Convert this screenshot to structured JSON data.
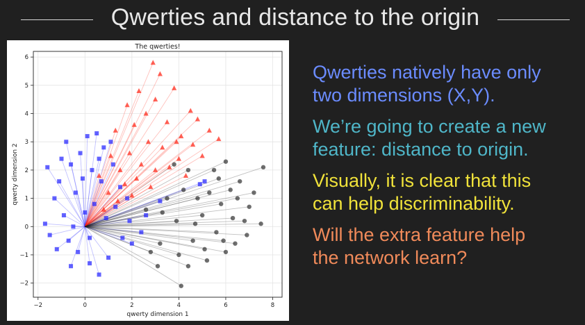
{
  "slide": {
    "title": "Qwerties and distance to the origin",
    "bullets": [
      {
        "lines": [
          "Qwerties natively have only",
          "two dimensions (X,Y)."
        ],
        "color": "#6b8cff"
      },
      {
        "lines": [
          "We’re going to create a new",
          "feature: distance to origin."
        ],
        "color": "#4fb6c8"
      },
      {
        "lines": [
          "Visually, it is clear that this",
          "can help discriminability."
        ],
        "color": "#f0e23a"
      },
      {
        "lines": [
          "Will the extra feature help",
          "the network learn?"
        ],
        "color": "#f08a5a"
      }
    ]
  },
  "chart_data": {
    "type": "scatter",
    "title": "The qwerties!",
    "xlabel": "qwerty dimension 1",
    "ylabel": "qwerty dimension 2",
    "xlim": [
      -2.2,
      8.4
    ],
    "ylim": [
      -2.5,
      6.2
    ],
    "xticks": [
      -2,
      0,
      2,
      4,
      6,
      8
    ],
    "yticks": [
      -2,
      -1,
      0,
      1,
      2,
      3,
      4,
      5,
      6
    ],
    "grid": true,
    "origin": [
      0,
      0
    ],
    "lines_to_origin": true,
    "series": [
      {
        "marker": "square",
        "color": "#1f1fff",
        "points": [
          [
            -1.6,
            2.1
          ],
          [
            -1.3,
            1.0
          ],
          [
            -1.7,
            0.1
          ],
          [
            -1.5,
            -0.3
          ],
          [
            -1.1,
            1.6
          ],
          [
            -0.8,
            3.0
          ],
          [
            -0.6,
            2.2
          ],
          [
            -0.9,
            0.4
          ],
          [
            -0.7,
            -0.5
          ],
          [
            -0.4,
            1.2
          ],
          [
            -0.2,
            2.6
          ],
          [
            0.1,
            3.2
          ],
          [
            0.3,
            2.0
          ],
          [
            0.5,
            3.3
          ],
          [
            0.8,
            2.8
          ],
          [
            1.1,
            3.0
          ],
          [
            -0.3,
            -0.9
          ],
          [
            0.2,
            -1.3
          ],
          [
            0.6,
            -1.7
          ],
          [
            1.0,
            -1.1
          ],
          [
            0.4,
            0.8
          ],
          [
            0.7,
            1.6
          ],
          [
            1.2,
            2.2
          ],
          [
            1.5,
            1.4
          ],
          [
            -1.2,
            -0.8
          ],
          [
            -0.5,
            0.0
          ],
          [
            0.9,
            0.3
          ],
          [
            1.6,
            -0.4
          ],
          [
            2.0,
            -0.6
          ],
          [
            2.4,
            -0.2
          ],
          [
            -0.1,
            1.7
          ],
          [
            0.0,
            0.5
          ],
          [
            -1.0,
            2.4
          ],
          [
            0.6,
            2.4
          ],
          [
            1.3,
            0.7
          ],
          [
            0.2,
            -0.4
          ],
          [
            -0.6,
            -1.4
          ],
          [
            1.8,
            1.0
          ],
          [
            1.9,
            0.2
          ],
          [
            2.6,
            0.4
          ],
          [
            3.2,
            0.9
          ],
          [
            4.9,
            1.5
          ],
          [
            5.1,
            1.6
          ]
        ]
      },
      {
        "marker": "triangle",
        "color": "#ff2010",
        "points": [
          [
            2.9,
            5.8
          ],
          [
            3.2,
            5.4
          ],
          [
            2.3,
            4.8
          ],
          [
            3.8,
            4.9
          ],
          [
            4.5,
            4.1
          ],
          [
            1.8,
            4.3
          ],
          [
            3.0,
            4.5
          ],
          [
            4.8,
            3.8
          ],
          [
            5.3,
            3.4
          ],
          [
            5.7,
            3.1
          ],
          [
            2.1,
            3.6
          ],
          [
            3.5,
            3.7
          ],
          [
            4.1,
            3.2
          ],
          [
            1.3,
            3.4
          ],
          [
            2.7,
            3.0
          ],
          [
            1.9,
            2.6
          ],
          [
            3.3,
            2.8
          ],
          [
            4.0,
            2.4
          ],
          [
            4.6,
            2.9
          ],
          [
            1.5,
            2.0
          ],
          [
            2.4,
            2.2
          ],
          [
            3.0,
            2.0
          ],
          [
            1.0,
            1.2
          ],
          [
            1.7,
            1.5
          ],
          [
            2.2,
            1.7
          ],
          [
            3.6,
            2.1
          ],
          [
            4.3,
            1.8
          ],
          [
            0.8,
            0.6
          ],
          [
            1.4,
            0.9
          ],
          [
            2.0,
            1.1
          ],
          [
            2.8,
            1.4
          ],
          [
            0.6,
            1.8
          ],
          [
            1.1,
            2.5
          ],
          [
            3.9,
            3.0
          ],
          [
            2.6,
            4.0
          ],
          [
            5.0,
            2.5
          ]
        ]
      },
      {
        "marker": "circle",
        "color": "#222222",
        "points": [
          [
            7.6,
            2.1
          ],
          [
            7.5,
            0.1
          ],
          [
            6.8,
            0.2
          ],
          [
            6.9,
            -0.3
          ],
          [
            6.0,
            -0.9
          ],
          [
            6.4,
            -0.6
          ],
          [
            5.2,
            -1.2
          ],
          [
            4.4,
            -1.4
          ],
          [
            3.1,
            -1.4
          ],
          [
            4.1,
            -2.1
          ],
          [
            5.5,
            2.0
          ],
          [
            6.2,
            1.3
          ],
          [
            5.8,
            0.8
          ],
          [
            6.5,
            1.0
          ],
          [
            4.8,
            1.0
          ],
          [
            5.0,
            0.4
          ],
          [
            5.6,
            -0.2
          ],
          [
            4.6,
            -0.5
          ],
          [
            3.9,
            0.2
          ],
          [
            3.5,
            1.0
          ],
          [
            4.2,
            1.3
          ],
          [
            6.0,
            2.3
          ],
          [
            6.6,
            1.6
          ],
          [
            5.3,
            1.2
          ],
          [
            3.2,
            -0.6
          ],
          [
            2.8,
            -0.9
          ],
          [
            4.0,
            -1.0
          ],
          [
            5.1,
            -0.8
          ],
          [
            6.3,
            0.3
          ],
          [
            7.0,
            0.7
          ],
          [
            4.4,
            2.0
          ],
          [
            3.8,
            2.2
          ],
          [
            5.7,
            1.7
          ],
          [
            2.6,
            0.6
          ],
          [
            3.3,
            0.5
          ],
          [
            4.7,
            0.1
          ],
          [
            5.9,
            -0.5
          ],
          [
            7.2,
            1.2
          ]
        ]
      }
    ]
  }
}
